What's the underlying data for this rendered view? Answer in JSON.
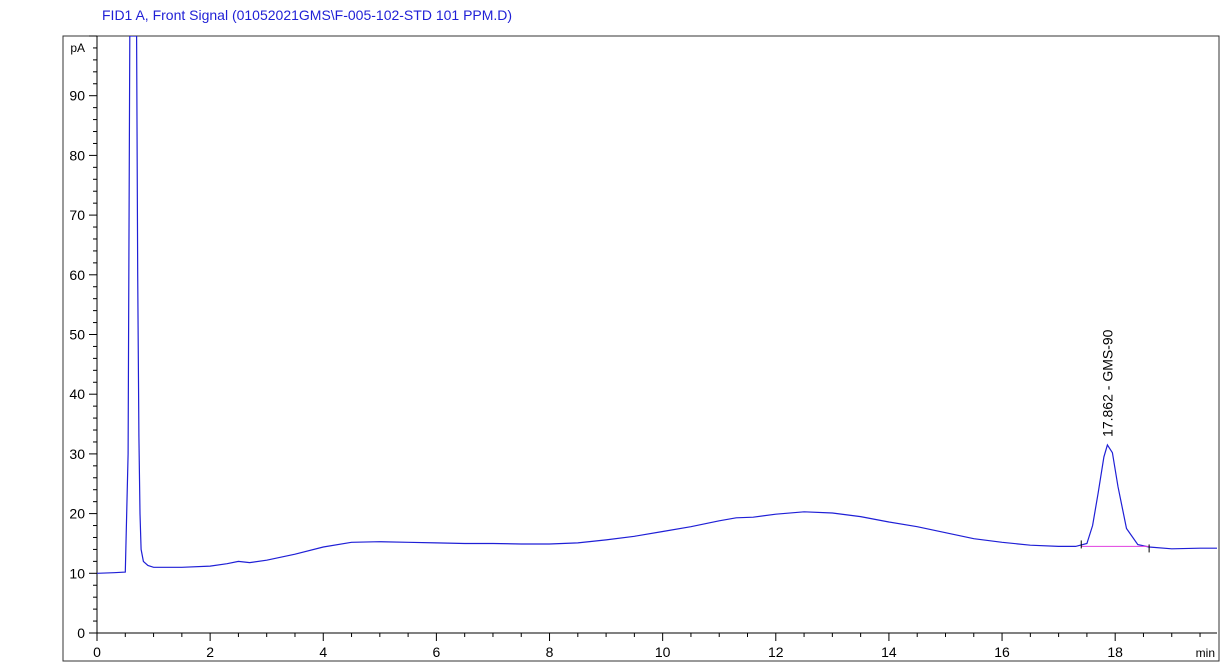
{
  "chart_data": {
    "type": "line",
    "title": "FID1 A, Front Signal (01052021GMS\\F-005-102-STD 101 PPM.D)",
    "y_unit": "pA",
    "x_unit": "min",
    "xlim": [
      0,
      19.8
    ],
    "ylim": [
      0,
      100
    ],
    "x_ticks": [
      0,
      2,
      4,
      6,
      8,
      10,
      12,
      14,
      16,
      18
    ],
    "y_ticks": [
      0,
      10,
      20,
      30,
      40,
      50,
      60,
      70,
      80,
      90
    ],
    "grid": false,
    "colors": {
      "trace": "#1f1fd6",
      "baseline": "#e040e0",
      "axis": "#000000"
    },
    "series": [
      {
        "x": [
          0,
          0.3,
          0.5,
          0.55,
          0.58,
          0.62,
          0.66,
          0.7,
          0.72,
          0.74,
          0.76,
          0.78,
          0.82,
          0.9,
          1.0,
          1.5,
          2.0,
          2.3,
          2.5,
          2.7,
          3.0,
          3.5,
          4.0,
          4.5,
          5.0,
          5.5,
          6.0,
          6.5,
          7.0,
          7.5,
          8.0,
          8.5,
          9.0,
          9.5,
          10.0,
          10.5,
          11.0,
          11.3,
          11.6,
          12.0,
          12.5,
          13.0,
          13.5,
          14.0,
          14.5,
          15.0,
          15.5,
          16.0,
          16.5,
          17.0,
          17.3,
          17.5,
          17.6,
          17.7,
          17.8,
          17.862,
          17.95,
          18.05,
          18.2,
          18.4,
          18.6,
          19.0,
          19.5,
          19.8
        ],
        "y": [
          10.0,
          10.1,
          10.2,
          30,
          100,
          100,
          100,
          100,
          60,
          33,
          20,
          14,
          12,
          11.3,
          11.0,
          11.0,
          11.2,
          11.6,
          12.0,
          11.8,
          12.2,
          13.2,
          14.4,
          15.2,
          15.3,
          15.2,
          15.1,
          15.0,
          15.0,
          14.9,
          14.9,
          15.1,
          15.6,
          16.2,
          17.0,
          17.8,
          18.8,
          19.3,
          19.4,
          19.9,
          20.3,
          20.1,
          19.5,
          18.6,
          17.8,
          16.8,
          15.8,
          15.2,
          14.7,
          14.5,
          14.5,
          15.0,
          18.0,
          23.5,
          29.5,
          31.5,
          30.2,
          24.5,
          17.5,
          14.8,
          14.4,
          14.1,
          14.2,
          14.2
        ]
      }
    ],
    "peaks": [
      {
        "label": "17.862 -  GMS-90",
        "x": 17.862,
        "y": 31.5,
        "start": 17.4,
        "end": 18.6,
        "baseline_y": 14.5
      }
    ]
  }
}
